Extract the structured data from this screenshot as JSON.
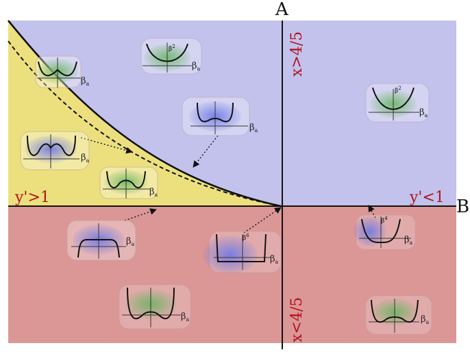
{
  "colors": {
    "upper_region": "#c2c2ec",
    "lower_region": "#db9696",
    "yellow_region": "#ece07e",
    "region_text": "#b0141c",
    "curve": "#111111",
    "green_glow": "#64b45c",
    "blue_glow": "#6e78e6"
  },
  "axes": {
    "vertical": "A",
    "horizontal": "B"
  },
  "labels": {
    "upper": "x>4/5",
    "lower": "x<4/5",
    "left": "y'>1",
    "right": "y'<1"
  },
  "insets": [
    {
      "name": "double-well-small-inset",
      "shape": "double-well",
      "glow": "green",
      "coupling": "βa",
      "exponent": ""
    },
    {
      "name": "quadratic-inset-top",
      "shape": "parabola",
      "glow": "green",
      "coupling": "βa",
      "exponent": "β2"
    },
    {
      "name": "quadratic-inset-right",
      "shape": "parabola",
      "glow": "green",
      "coupling": "βa",
      "exponent": "β2"
    },
    {
      "name": "flat-bottom-inset-top",
      "shape": "flat-bump",
      "glow": "blue",
      "coupling": "βa",
      "exponent": ""
    },
    {
      "name": "triple-well-inset-left",
      "shape": "triple-well",
      "glow": "blue",
      "coupling": "βa",
      "exponent": ""
    },
    {
      "name": "shallow-wells-inset-yellow",
      "shape": "shallow-wells",
      "glow": "green",
      "coupling": "βa",
      "exponent": ""
    },
    {
      "name": "flat-bottom-inset-lower",
      "shape": "flat",
      "glow": "blue",
      "coupling": "βa",
      "exponent": ""
    },
    {
      "name": "sixth-order-inset",
      "shape": "box",
      "glow": "blue",
      "coupling": "βa",
      "exponent": "β6"
    },
    {
      "name": "quartic-inset",
      "shape": "quartic",
      "glow": "blue",
      "coupling": "βa",
      "exponent": "β4"
    },
    {
      "name": "double-well-inset-lower",
      "shape": "double-well",
      "glow": "green",
      "coupling": "βa",
      "exponent": ""
    },
    {
      "name": "double-well-inset-lower-right",
      "shape": "double-well-small",
      "glow": "green",
      "coupling": "βa",
      "exponent": ""
    }
  ]
}
